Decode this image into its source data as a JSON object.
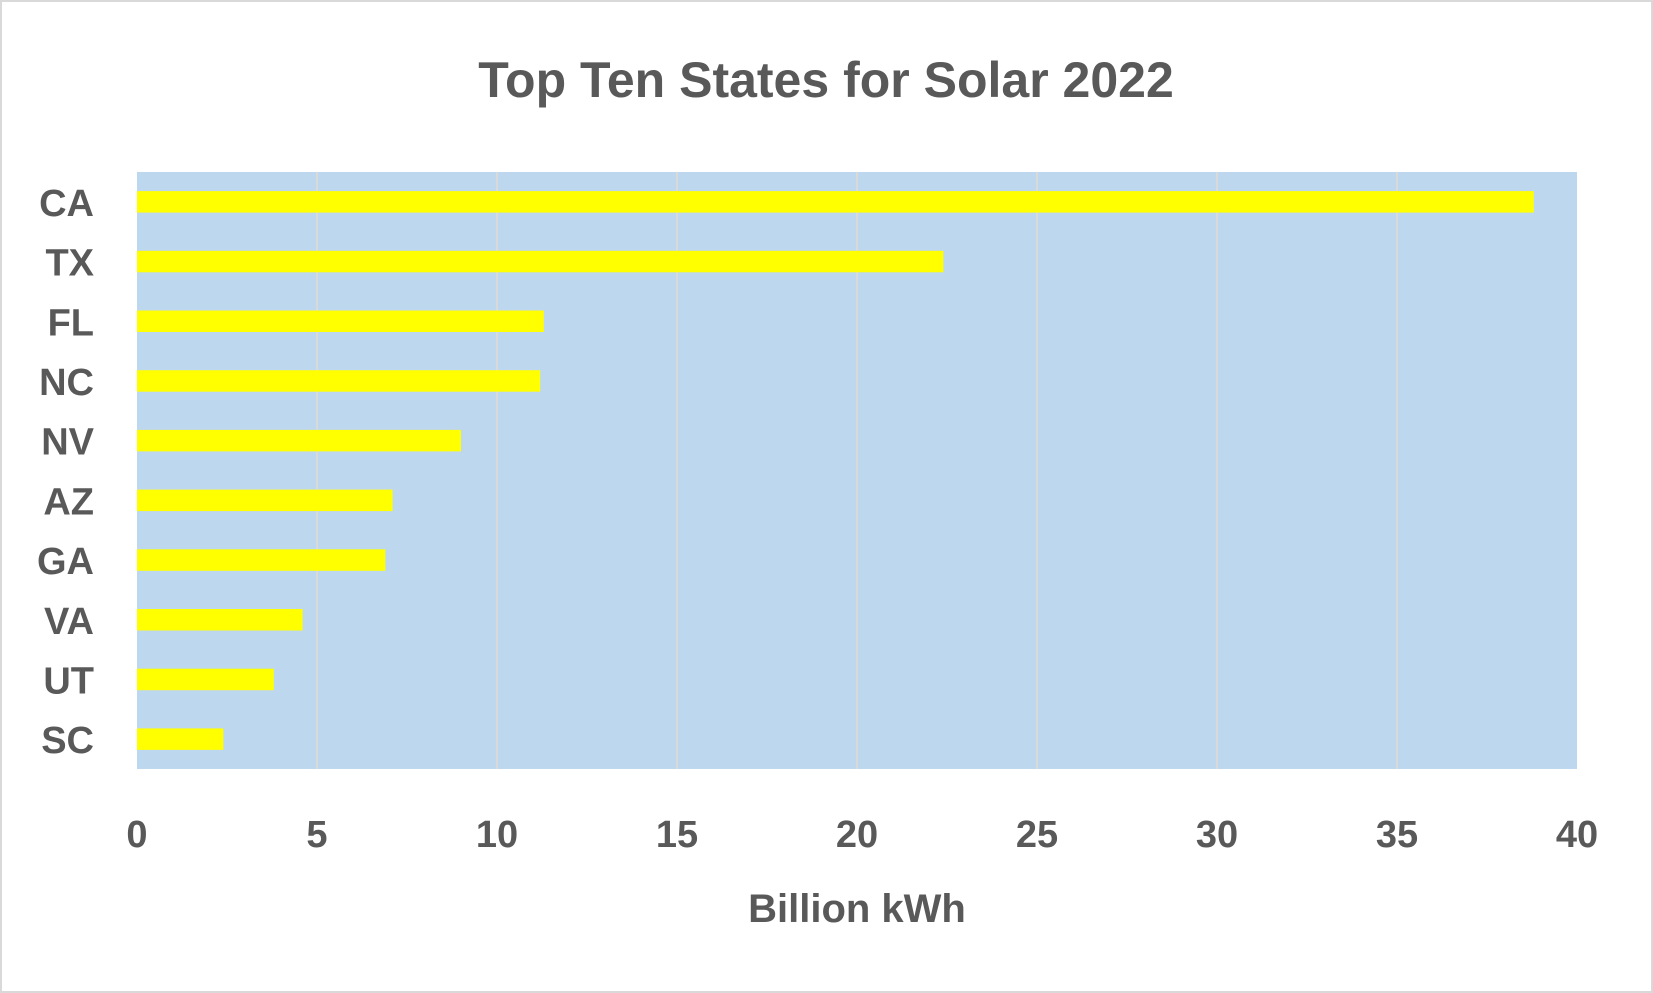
{
  "chart_data": {
    "type": "bar",
    "orientation": "horizontal",
    "title": "Top Ten States for Solar 2022",
    "xlabel": "Billion kWh",
    "ylabel": "",
    "categories": [
      "CA",
      "TX",
      "FL",
      "NC",
      "NV",
      "AZ",
      "GA",
      "VA",
      "UT",
      "SC"
    ],
    "values": [
      38.8,
      22.4,
      11.3,
      11.2,
      9.0,
      7.1,
      6.9,
      4.6,
      3.8,
      2.4
    ],
    "xlim": [
      0,
      40
    ],
    "xticks": [
      "0",
      "5",
      "10",
      "15",
      "20",
      "25",
      "30",
      "35",
      "40"
    ],
    "grid": true,
    "legend": "none",
    "colors": {
      "bar": "#ffff00",
      "plot_background": "#bdd7ee",
      "gridline": "#d9d9d9",
      "text": "#595959",
      "border": "#d9d9d9"
    }
  }
}
